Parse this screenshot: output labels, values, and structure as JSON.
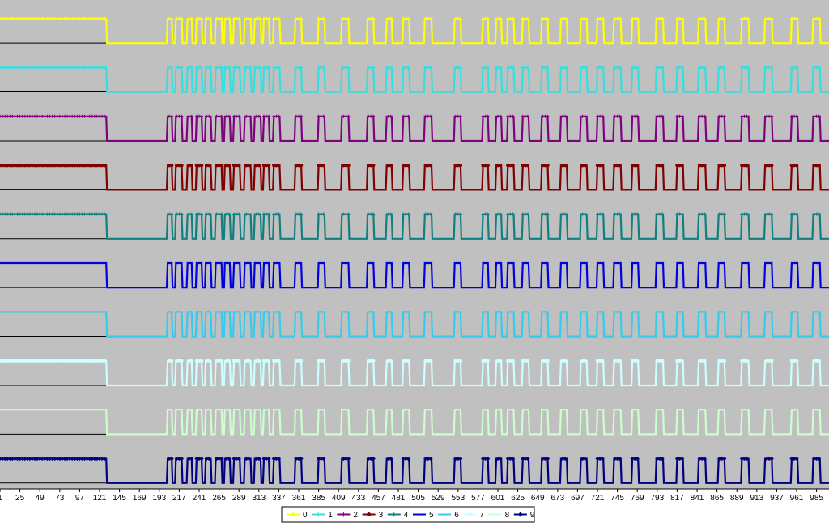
{
  "chart_data": {
    "type": "line",
    "title": "",
    "xlabel": "",
    "ylabel": "",
    "x_range": [
      1,
      1000
    ],
    "x_tick_labels": [
      "1",
      "25",
      "49",
      "73",
      "97",
      "121",
      "145",
      "169",
      "193",
      "217",
      "241",
      "265",
      "289",
      "313",
      "337",
      "361",
      "385",
      "409",
      "433",
      "457",
      "481",
      "505",
      "529",
      "553",
      "577",
      "601",
      "625",
      "649",
      "673",
      "697",
      "721",
      "745",
      "769",
      "793",
      "817",
      "841",
      "865",
      "889",
      "913",
      "937",
      "961",
      "985"
    ],
    "y_levels_per_series": [
      0,
      1
    ],
    "grid": false,
    "legend": "bottom",
    "plot_background": "#c0c0c0",
    "pulse_high_ranges": [
      [
        1,
        129
      ],
      [
        203,
        208
      ],
      [
        213,
        220
      ],
      [
        227,
        232
      ],
      [
        238,
        244
      ],
      [
        249,
        255
      ],
      [
        261,
        268
      ],
      [
        272,
        278
      ],
      [
        283,
        290
      ],
      [
        296,
        303
      ],
      [
        308,
        315
      ],
      [
        319,
        325
      ],
      [
        331,
        338
      ],
      [
        357,
        364
      ],
      [
        385,
        392
      ],
      [
        413,
        421
      ],
      [
        444,
        451
      ],
      [
        467,
        473
      ],
      [
        487,
        494
      ],
      [
        513,
        521
      ],
      [
        549,
        556
      ],
      [
        583,
        589
      ],
      [
        599,
        605
      ],
      [
        613,
        620
      ],
      [
        631,
        638
      ],
      [
        654,
        661
      ],
      [
        677,
        684
      ],
      [
        701,
        708
      ],
      [
        721,
        728
      ],
      [
        741,
        749
      ],
      [
        763,
        770
      ],
      [
        792,
        800
      ],
      [
        817,
        824
      ],
      [
        843,
        851
      ],
      [
        867,
        874
      ],
      [
        895,
        903
      ],
      [
        923,
        931
      ],
      [
        955,
        962
      ],
      [
        981,
        989
      ]
    ],
    "series": [
      {
        "name": "0",
        "color": "#ffff00",
        "marker": "triangle"
      },
      {
        "name": "1",
        "color": "#33e0e0",
        "marker": "plus"
      },
      {
        "name": "2",
        "color": "#800080",
        "marker": "plus"
      },
      {
        "name": "3",
        "color": "#800000",
        "marker": "circle"
      },
      {
        "name": "4",
        "color": "#107f7f",
        "marker": "plus"
      },
      {
        "name": "5",
        "color": "#0000e0",
        "marker": "none"
      },
      {
        "name": "6",
        "color": "#33ccee",
        "marker": "none"
      },
      {
        "name": "7",
        "color": "#ccffff",
        "marker": "circle"
      },
      {
        "name": "8",
        "color": "#ccffcc",
        "marker": "none"
      },
      {
        "name": "9",
        "color": "#000080",
        "marker": "diamond"
      }
    ]
  }
}
